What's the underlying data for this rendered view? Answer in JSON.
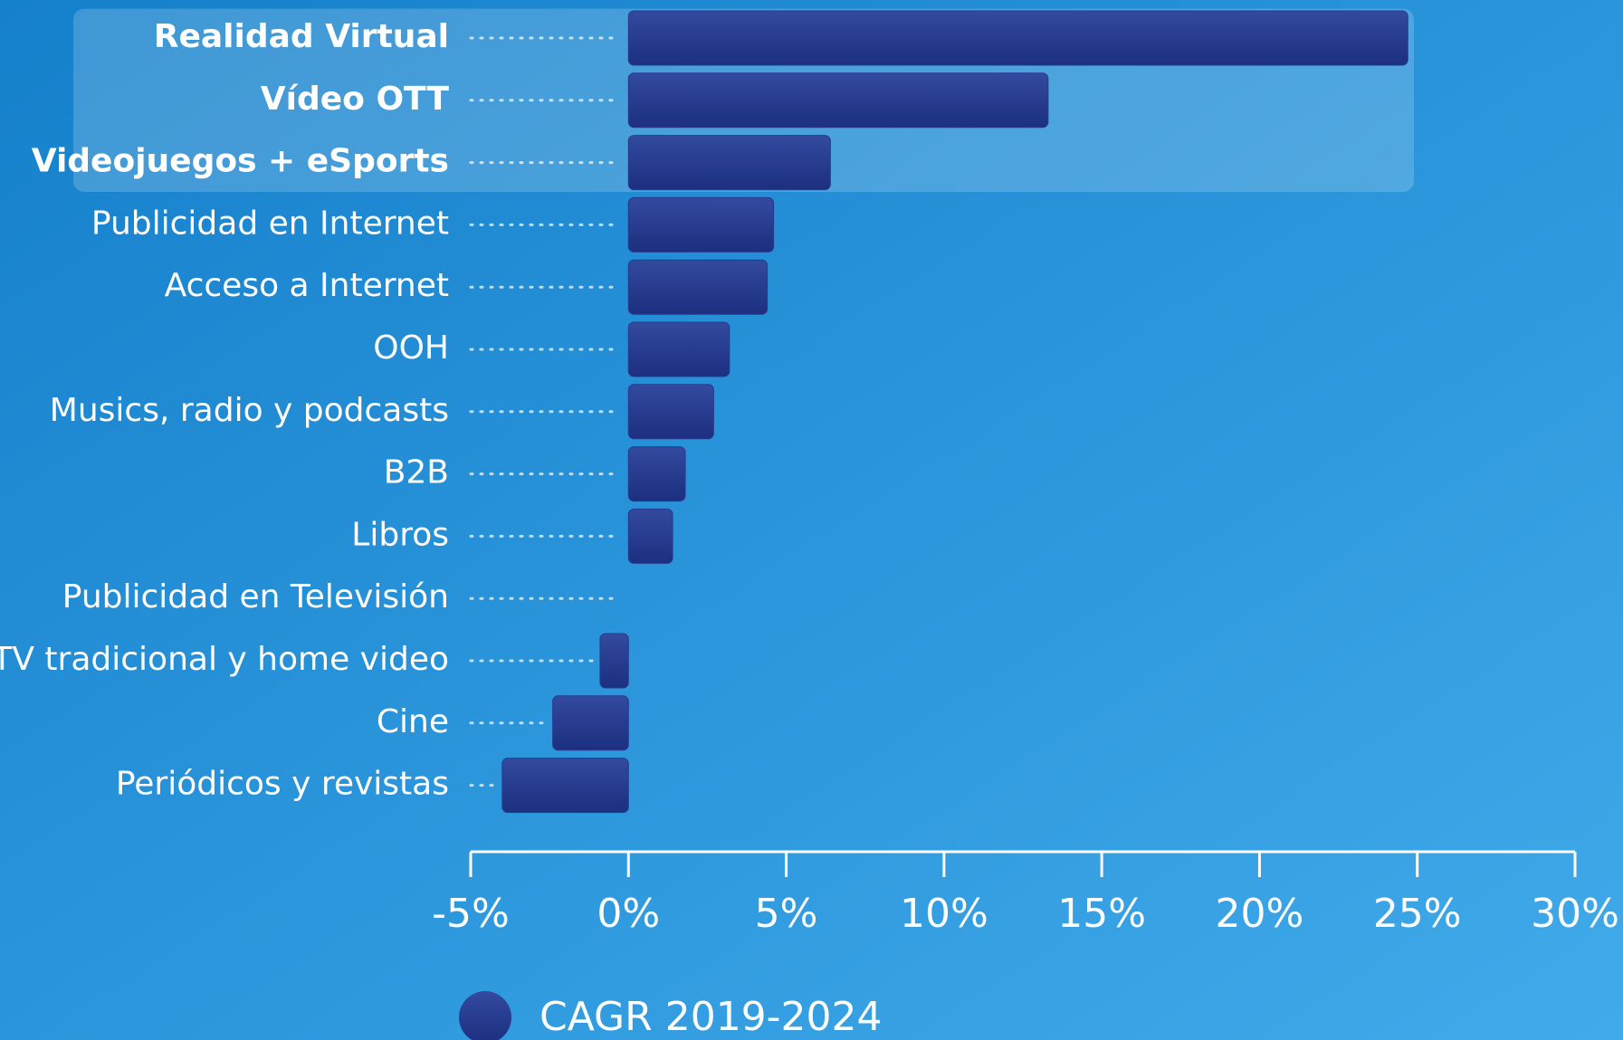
{
  "chart_data": {
    "type": "bar",
    "orientation": "horizontal",
    "categories": [
      "Realidad Virtual",
      "Vídeo OTT",
      "Videojuegos + eSports",
      "Publicidad en Internet",
      "Acceso a Internet",
      "OOH",
      "Musics, radio y podcasts",
      "B2B",
      "Libros",
      "Publicidad en Televisión",
      "TV tradicional y home video",
      "Cine",
      "Periódicos y revistas"
    ],
    "highlight": [
      true,
      true,
      true,
      false,
      false,
      false,
      false,
      false,
      false,
      false,
      false,
      false,
      false
    ],
    "series": [
      {
        "name": "CAGR 2019-2024",
        "color": "#263a8e",
        "values": [
          24.7,
          13.3,
          6.4,
          4.6,
          4.4,
          3.2,
          2.7,
          1.8,
          1.4,
          0,
          -0.9,
          -2.4,
          -4.0
        ]
      }
    ],
    "xlim": [
      -5,
      30
    ],
    "xticks": [
      {
        "value": -5,
        "label": "-5%"
      },
      {
        "value": 0,
        "label": "0%"
      },
      {
        "value": 5,
        "label": "5%"
      },
      {
        "value": 10,
        "label": "10%"
      },
      {
        "value": 15,
        "label": "15%"
      },
      {
        "value": 20,
        "label": "20%"
      },
      {
        "value": 25,
        "label": "25%"
      },
      {
        "value": 30,
        "label": "30%"
      }
    ],
    "legend": "bottom-left"
  }
}
